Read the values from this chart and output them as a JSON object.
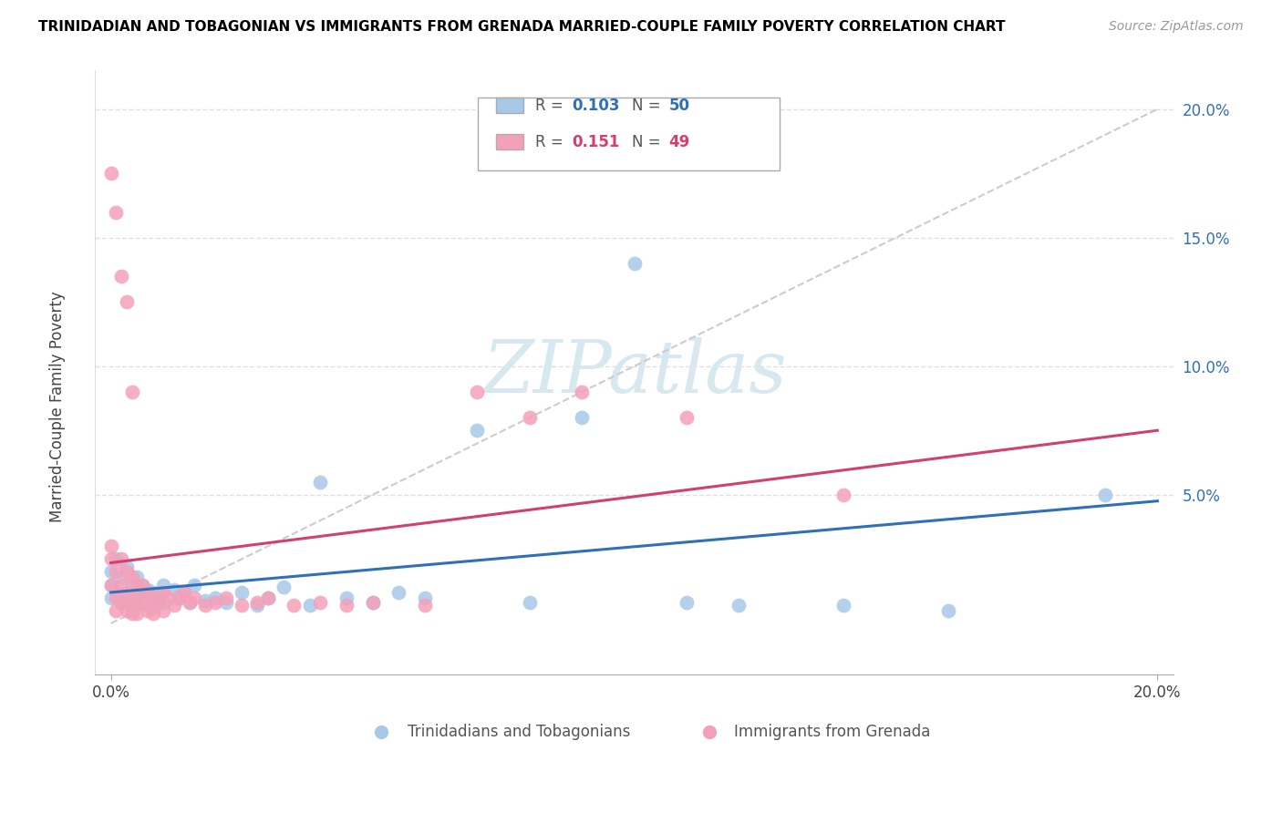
{
  "title": "TRINIDADIAN AND TOBAGONIAN VS IMMIGRANTS FROM GRENADA MARRIED-COUPLE FAMILY POVERTY CORRELATION CHART",
  "source": "Source: ZipAtlas.com",
  "xlabel_bottom": [
    "Trinidadians and Tobagonians",
    "Immigrants from Grenada"
  ],
  "ylabel": "Married-Couple Family Poverty",
  "xmin": 0.0,
  "xmax": 0.2,
  "ymin": -0.02,
  "ymax": 0.215,
  "r_blue": 0.103,
  "n_blue": 50,
  "r_pink": 0.151,
  "n_pink": 49,
  "blue_color": "#a8c8e8",
  "pink_color": "#f4a0b8",
  "blue_line_color": "#3070b8",
  "pink_line_color": "#d04070",
  "diag_color": "#cccccc",
  "watermark_color": "#d8e8f0",
  "grid_color": "#e0e0e0",
  "blue_x": [
    0.0,
    0.0,
    0.0,
    0.001,
    0.001,
    0.002,
    0.002,
    0.003,
    0.003,
    0.004,
    0.004,
    0.005,
    0.005,
    0.005,
    0.006,
    0.006,
    0.007,
    0.007,
    0.008,
    0.008,
    0.009,
    0.01,
    0.01,
    0.012,
    0.013,
    0.014,
    0.015,
    0.016,
    0.018,
    0.02,
    0.022,
    0.025,
    0.028,
    0.03,
    0.033,
    0.038,
    0.04,
    0.045,
    0.05,
    0.055,
    0.06,
    0.07,
    0.08,
    0.09,
    0.1,
    0.11,
    0.12,
    0.14,
    0.16,
    0.19
  ],
  "blue_y": [
    0.02,
    0.015,
    0.01,
    0.025,
    0.012,
    0.018,
    0.008,
    0.022,
    0.01,
    0.015,
    0.005,
    0.018,
    0.012,
    0.008,
    0.015,
    0.01,
    0.013,
    0.007,
    0.012,
    0.006,
    0.01,
    0.015,
    0.008,
    0.013,
    0.01,
    0.012,
    0.008,
    0.015,
    0.009,
    0.01,
    0.008,
    0.012,
    0.007,
    0.01,
    0.014,
    0.007,
    0.055,
    0.01,
    0.008,
    0.012,
    0.01,
    0.075,
    0.008,
    0.08,
    0.14,
    0.008,
    0.007,
    0.007,
    0.005,
    0.05
  ],
  "pink_x": [
    0.0,
    0.0,
    0.0,
    0.001,
    0.001,
    0.001,
    0.002,
    0.002,
    0.002,
    0.003,
    0.003,
    0.003,
    0.004,
    0.004,
    0.004,
    0.005,
    0.005,
    0.005,
    0.006,
    0.006,
    0.007,
    0.007,
    0.008,
    0.008,
    0.009,
    0.01,
    0.01,
    0.011,
    0.012,
    0.013,
    0.014,
    0.015,
    0.016,
    0.018,
    0.02,
    0.022,
    0.025,
    0.028,
    0.03,
    0.035,
    0.04,
    0.045,
    0.05,
    0.06,
    0.07,
    0.08,
    0.09,
    0.11,
    0.14
  ],
  "pink_y": [
    0.03,
    0.025,
    0.015,
    0.02,
    0.01,
    0.005,
    0.025,
    0.015,
    0.008,
    0.02,
    0.012,
    0.005,
    0.018,
    0.008,
    0.004,
    0.015,
    0.01,
    0.004,
    0.015,
    0.008,
    0.012,
    0.005,
    0.01,
    0.004,
    0.008,
    0.012,
    0.005,
    0.01,
    0.007,
    0.01,
    0.012,
    0.008,
    0.01,
    0.007,
    0.008,
    0.01,
    0.007,
    0.008,
    0.01,
    0.007,
    0.008,
    0.007,
    0.008,
    0.007,
    0.09,
    0.08,
    0.09,
    0.08,
    0.05
  ],
  "pink_highx": [
    0.0,
    0.001,
    0.002,
    0.003,
    0.004
  ],
  "pink_highy": [
    0.175,
    0.16,
    0.135,
    0.125,
    0.09
  ]
}
